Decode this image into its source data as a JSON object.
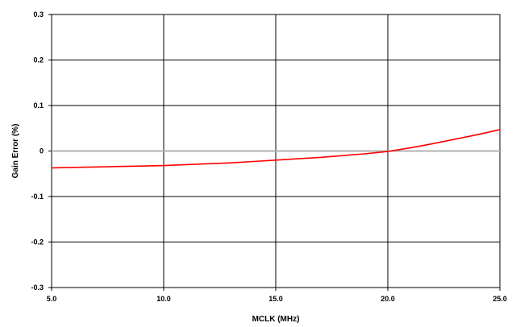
{
  "chart_data": {
    "type": "line",
    "title": "",
    "xlabel": "MCLK (MHz)",
    "ylabel": "Gain Error (%)",
    "xlim": [
      5.0,
      25.0
    ],
    "ylim": [
      -0.3,
      0.3
    ],
    "grid": true,
    "x_ticks": [
      5.0,
      10.0,
      15.0,
      20.0,
      25.0
    ],
    "x_tick_labels": [
      "5.0",
      "10.0",
      "15.0",
      "20.0",
      "25.0"
    ],
    "y_ticks": [
      -0.3,
      -0.2,
      -0.1,
      0,
      0.1,
      0.2,
      0.3
    ],
    "y_tick_labels": [
      "-0.3",
      "-0.2",
      "-0.1",
      "0",
      "0.1",
      "0.2",
      "0.3"
    ],
    "series": [
      {
        "color": "#ff0000",
        "x": [
          5.0,
          6.0,
          7.0,
          8.0,
          9.0,
          10.0,
          11.0,
          12.0,
          13.0,
          14.0,
          15.0,
          16.0,
          17.0,
          18.0,
          19.0,
          20.0,
          21.0,
          22.0,
          23.0,
          24.0,
          25.0
        ],
        "y": [
          -0.037,
          -0.036,
          -0.035,
          -0.034,
          -0.033,
          -0.032,
          -0.03,
          -0.028,
          -0.026,
          -0.023,
          -0.02,
          -0.017,
          -0.014,
          -0.01,
          -0.006,
          -0.001,
          0.007,
          0.016,
          0.026,
          0.036,
          0.047
        ]
      }
    ],
    "zero_line_color": "#b0b0b0",
    "grid_color": "#000000"
  }
}
